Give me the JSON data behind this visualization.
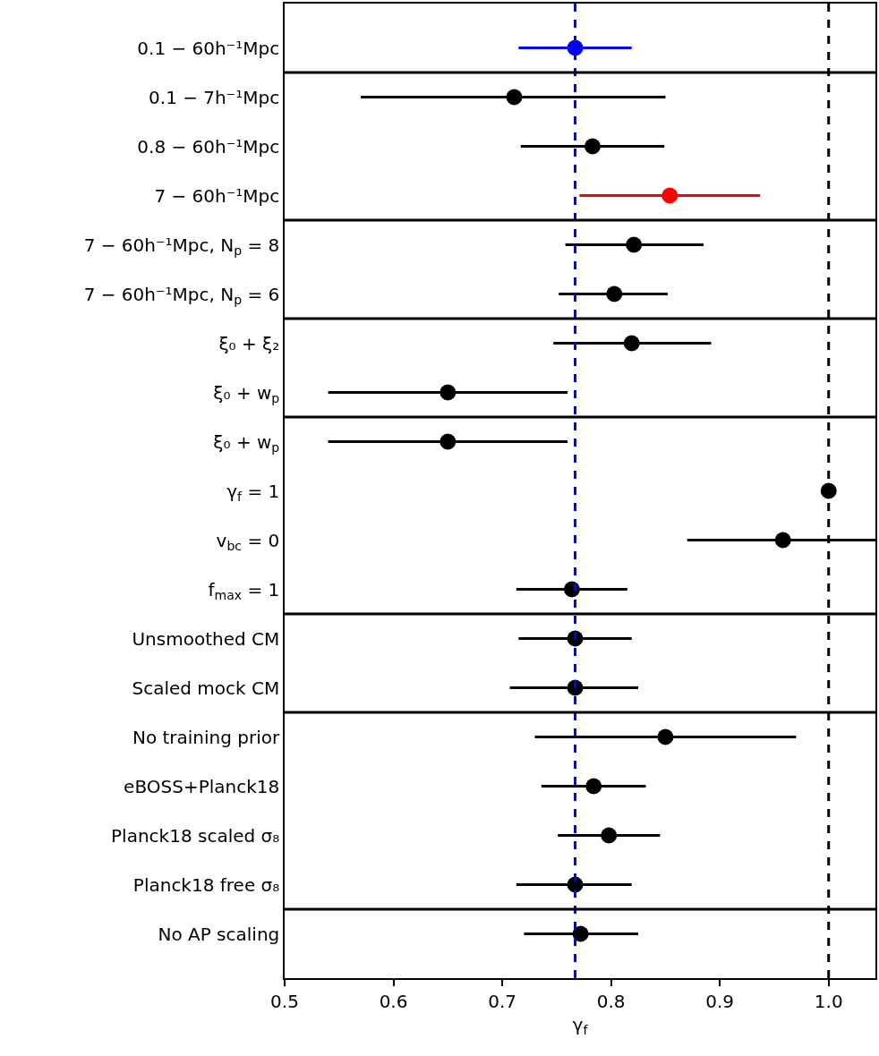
{
  "chart_data": {
    "type": "scatter",
    "orientation": "horizontal",
    "xlabel": "γ$_{f}$",
    "categories": [
      "0.1 − 60h⁻¹Mpc",
      "0.1 − 7h⁻¹Mpc",
      "0.8 − 60h⁻¹Mpc",
      "7 − 60h⁻¹Mpc",
      "7 − 60h⁻¹Mpc, N$_{p}$ = 8",
      "7 − 60h⁻¹Mpc, N$_{p}$ = 6",
      "ξ₀ + ξ₂",
      "ξ₀ + w$_{p}$",
      "ξ₀ + w$_{p}$",
      "γ$_{f}$ = 1",
      "v$_{bc}$ = 0",
      "f$_{max}$ = 1",
      "Unsmoothed CM",
      "Scaled mock CM",
      "No training prior",
      "eBOSS+Planck18",
      "Planck18 scaled σ₈",
      "Planck18 free σ₈",
      "No AP scaling"
    ],
    "values": [
      0.767,
      0.711,
      0.783,
      0.854,
      0.821,
      0.803,
      0.819,
      0.65,
      0.65,
      1.0,
      0.958,
      0.764,
      0.767,
      0.767,
      0.85,
      0.784,
      0.798,
      0.767,
      0.772
    ],
    "errors": [
      [
        0.715,
        0.819
      ],
      [
        0.57,
        0.85
      ],
      [
        0.717,
        0.849
      ],
      [
        0.771,
        0.937
      ],
      [
        0.758,
        0.885
      ],
      [
        0.752,
        0.852
      ],
      [
        0.747,
        0.892
      ],
      [
        0.54,
        0.76
      ],
      [
        0.54,
        0.76
      ],
      null,
      [
        0.87,
        1.043
      ],
      [
        0.713,
        0.815
      ],
      [
        0.715,
        0.819
      ],
      [
        0.707,
        0.825
      ],
      [
        0.73,
        0.97
      ],
      [
        0.736,
        0.832
      ],
      [
        0.751,
        0.845
      ],
      [
        0.713,
        0.819
      ],
      [
        0.72,
        0.825
      ]
    ],
    "colors": [
      "#0000ff",
      "#000000",
      "#000000",
      "#ff0000",
      "#000000",
      "#000000",
      "#000000",
      "#000000",
      "#000000",
      "#000000",
      "#000000",
      "#000000",
      "#000000",
      "#000000",
      "#000000",
      "#000000",
      "#000000",
      "#000000",
      "#000000"
    ],
    "marker": "circle",
    "xlim": [
      0.5,
      1.043
    ],
    "xticks": [
      {
        "value": 0.5,
        "label": "0.5"
      },
      {
        "value": 0.6,
        "label": "0.6"
      },
      {
        "value": 0.7,
        "label": "0.7"
      },
      {
        "value": 0.8,
        "label": "0.8"
      },
      {
        "value": 0.9,
        "label": "0.9"
      },
      {
        "value": 1.0,
        "label": "1.0"
      }
    ],
    "ref_lines": [
      {
        "axis": "x",
        "value": 0.767,
        "color": "#0000ff",
        "line_style": "dashed"
      },
      {
        "axis": "x",
        "value": 1.0,
        "color": "#000000",
        "line_style": "dashed"
      }
    ]
  }
}
